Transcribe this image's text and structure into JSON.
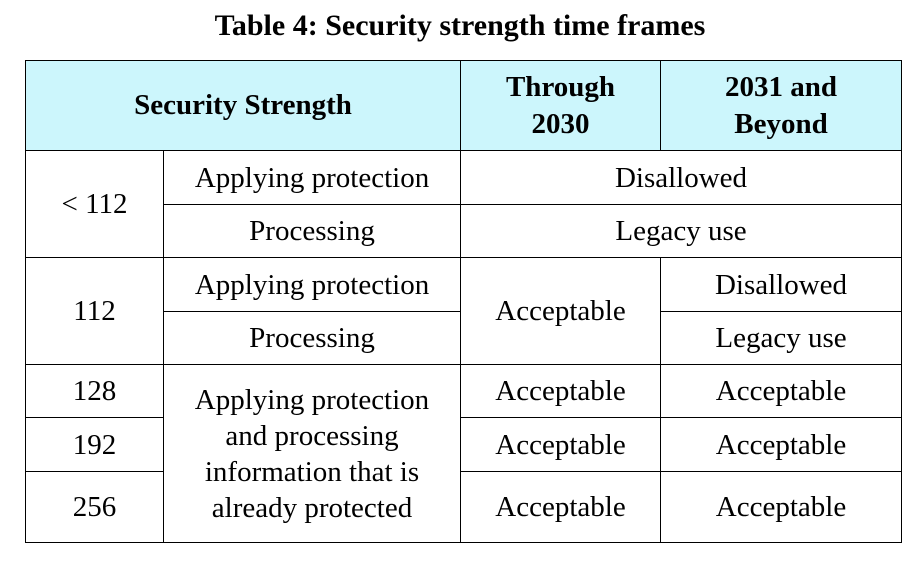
{
  "caption": "Table 4: Security strength time frames",
  "header": {
    "security_strength": "Security Strength",
    "through_2030": "Through 2030",
    "beyond_2031": "2031 and Beyond"
  },
  "rows": {
    "lt112": {
      "strength": "< 112",
      "apply": "Applying protection",
      "process": "Processing",
      "apply_status": "Disallowed",
      "process_status": "Legacy use"
    },
    "s112": {
      "strength": "112",
      "apply": "Applying protection",
      "process": "Processing",
      "through_2030": "Acceptable",
      "apply_beyond": "Disallowed",
      "process_beyond": "Legacy use"
    },
    "high": {
      "usage": "Applying protection and processing information that is already protected",
      "s128": {
        "strength": "128",
        "through_2030": "Acceptable",
        "beyond": "Acceptable"
      },
      "s192": {
        "strength": "192",
        "through_2030": "Acceptable",
        "beyond": "Acceptable"
      },
      "s256": {
        "strength": "256",
        "through_2030": "Acceptable",
        "beyond": "Acceptable"
      }
    }
  }
}
